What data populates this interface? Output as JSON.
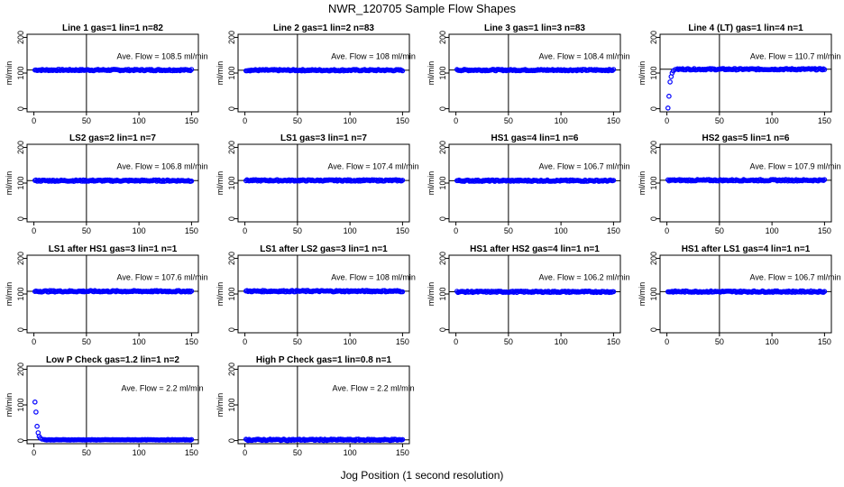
{
  "figure": {
    "title": "NWR_120705  Sample Flow Shapes",
    "xlabel": "Jog Position (1 second resolution)"
  },
  "chart_data": [
    {
      "type": "scatter",
      "title": "Line 1 gas=1 lin=1 n=82",
      "ylabel": "ml/min",
      "avg_label": "Ave. Flow =  108.5  ml/min",
      "avg_value": 108.5,
      "xlim": [
        0,
        150
      ],
      "ylim": [
        0,
        200
      ],
      "xticks": [
        0,
        50,
        100,
        150
      ],
      "yticks": [
        0,
        100,
        200
      ],
      "vline": 50,
      "hline": 108.5,
      "series": [
        {
          "color": "#0000ff",
          "x": [
            1,
            150
          ],
          "y": [
            108.5,
            108.5
          ],
          "shape": "flat"
        }
      ]
    },
    {
      "type": "scatter",
      "title": "Line 2 gas=1 lin=2 n=83",
      "ylabel": "ml/min",
      "avg_label": "Ave. Flow =  108  ml/min",
      "avg_value": 108,
      "xlim": [
        0,
        150
      ],
      "ylim": [
        0,
        200
      ],
      "xticks": [
        0,
        50,
        100,
        150
      ],
      "yticks": [
        0,
        100,
        200
      ],
      "vline": 50,
      "hline": 108,
      "series": [
        {
          "color": "#0000ff",
          "x": [
            1,
            150
          ],
          "y": [
            108,
            108
          ],
          "shape": "flat"
        }
      ]
    },
    {
      "type": "scatter",
      "title": "Line 3 gas=1 lin=3 n=83",
      "ylabel": "ml/min",
      "avg_label": "Ave. Flow =  108.4  ml/min",
      "avg_value": 108.4,
      "xlim": [
        0,
        150
      ],
      "ylim": [
        0,
        200
      ],
      "xticks": [
        0,
        50,
        100,
        150
      ],
      "yticks": [
        0,
        100,
        200
      ],
      "vline": 50,
      "hline": 108.4,
      "series": [
        {
          "color": "#0000ff",
          "x": [
            1,
            150
          ],
          "y": [
            108.4,
            108.4
          ],
          "shape": "flat"
        }
      ]
    },
    {
      "type": "scatter",
      "title": "Line 4 (LT) gas=1 lin=4 n=1",
      "ylabel": "ml/min",
      "avg_label": "Ave. Flow =  110.7  ml/min",
      "avg_value": 110.7,
      "xlim": [
        0,
        150
      ],
      "ylim": [
        0,
        200
      ],
      "xticks": [
        0,
        50,
        100,
        150
      ],
      "yticks": [
        0,
        100,
        200
      ],
      "vline": 50,
      "hline": 110.7,
      "series": [
        {
          "color": "#0000ff",
          "x": [
            1,
            2,
            3,
            4,
            5,
            6,
            8,
            10
          ],
          "y": [
            2,
            35,
            75,
            90,
            100,
            106,
            110,
            112
          ],
          "shape": "rise"
        }
      ]
    },
    {
      "type": "scatter",
      "title": "LS2 gas=2 lin=1 n=7",
      "ylabel": "ml/min",
      "avg_label": "Ave. Flow =  106.8  ml/min",
      "avg_value": 106.8,
      "xlim": [
        0,
        150
      ],
      "ylim": [
        0,
        200
      ],
      "xticks": [
        0,
        50,
        100,
        150
      ],
      "yticks": [
        0,
        100,
        200
      ],
      "vline": 50,
      "hline": 106.8,
      "series": [
        {
          "color": "#0000ff",
          "x": [
            1,
            150
          ],
          "y": [
            106.8,
            106.8
          ],
          "shape": "flat"
        }
      ]
    },
    {
      "type": "scatter",
      "title": "LS1 gas=3 lin=1 n=7",
      "ylabel": "ml/min",
      "avg_label": "Ave. Flow =  107.4  ml/min",
      "avg_value": 107.4,
      "xlim": [
        0,
        150
      ],
      "ylim": [
        0,
        200
      ],
      "xticks": [
        0,
        50,
        100,
        150
      ],
      "yticks": [
        0,
        100,
        200
      ],
      "vline": 50,
      "hline": 107.4,
      "series": [
        {
          "color": "#0000ff",
          "x": [
            1,
            150
          ],
          "y": [
            107.4,
            107.4
          ],
          "shape": "flat"
        }
      ]
    },
    {
      "type": "scatter",
      "title": "HS1 gas=4 lin=1 n=6",
      "ylabel": "ml/min",
      "avg_label": "Ave. Flow =  106.7  ml/min",
      "avg_value": 106.7,
      "xlim": [
        0,
        150
      ],
      "ylim": [
        0,
        200
      ],
      "xticks": [
        0,
        50,
        100,
        150
      ],
      "yticks": [
        0,
        100,
        200
      ],
      "vline": 50,
      "hline": 106.7,
      "series": [
        {
          "color": "#0000ff",
          "x": [
            1,
            150
          ],
          "y": [
            106.7,
            106.7
          ],
          "shape": "flat"
        }
      ]
    },
    {
      "type": "scatter",
      "title": "HS2 gas=5 lin=1 n=6",
      "ylabel": "ml/min",
      "avg_label": "Ave. Flow =  107.9  ml/min",
      "avg_value": 107.9,
      "xlim": [
        0,
        150
      ],
      "ylim": [
        0,
        200
      ],
      "xticks": [
        0,
        50,
        100,
        150
      ],
      "yticks": [
        0,
        100,
        200
      ],
      "vline": 50,
      "hline": 107.9,
      "series": [
        {
          "color": "#0000ff",
          "x": [
            1,
            150
          ],
          "y": [
            107.9,
            107.9
          ],
          "shape": "flat"
        }
      ]
    },
    {
      "type": "scatter",
      "title": "LS1 after HS1 gas=3 lin=1 n=1",
      "ylabel": "ml/min",
      "avg_label": "Ave. Flow =  107.6  ml/min",
      "avg_value": 107.6,
      "xlim": [
        0,
        150
      ],
      "ylim": [
        0,
        200
      ],
      "xticks": [
        0,
        50,
        100,
        150
      ],
      "yticks": [
        0,
        100,
        200
      ],
      "vline": 50,
      "hline": 107.6,
      "series": [
        {
          "color": "#0000ff",
          "x": [
            1,
            150
          ],
          "y": [
            107.6,
            107.6
          ],
          "shape": "flat"
        }
      ]
    },
    {
      "type": "scatter",
      "title": "LS1 after LS2 gas=3 lin=1 n=1",
      "ylabel": "ml/min",
      "avg_label": "Ave. Flow =  108  ml/min",
      "avg_value": 108,
      "xlim": [
        0,
        150
      ],
      "ylim": [
        0,
        200
      ],
      "xticks": [
        0,
        50,
        100,
        150
      ],
      "yticks": [
        0,
        100,
        200
      ],
      "vline": 50,
      "hline": 108,
      "series": [
        {
          "color": "#0000ff",
          "x": [
            1,
            150
          ],
          "y": [
            108,
            108
          ],
          "shape": "flat"
        }
      ]
    },
    {
      "type": "scatter",
      "title": "HS1 after HS2 gas=4 lin=1 n=1",
      "ylabel": "ml/min",
      "avg_label": "Ave. Flow =  106.2  ml/min",
      "avg_value": 106.2,
      "xlim": [
        0,
        150
      ],
      "ylim": [
        0,
        200
      ],
      "xticks": [
        0,
        50,
        100,
        150
      ],
      "yticks": [
        0,
        100,
        200
      ],
      "vline": 50,
      "hline": 106.2,
      "series": [
        {
          "color": "#0000ff",
          "x": [
            1,
            150
          ],
          "y": [
            106.2,
            106.2
          ],
          "shape": "flat"
        }
      ]
    },
    {
      "type": "scatter",
      "title": "HS1 after LS1 gas=4 lin=1 n=1",
      "ylabel": "ml/min",
      "avg_label": "Ave. Flow =  106.7  ml/min",
      "avg_value": 106.7,
      "xlim": [
        0,
        150
      ],
      "ylim": [
        0,
        200
      ],
      "xticks": [
        0,
        50,
        100,
        150
      ],
      "yticks": [
        0,
        100,
        200
      ],
      "vline": 50,
      "hline": 106.7,
      "series": [
        {
          "color": "#0000ff",
          "x": [
            1,
            150
          ],
          "y": [
            106.7,
            106.7
          ],
          "shape": "flat"
        }
      ]
    },
    {
      "type": "scatter",
      "title": "Low P Check gas=1.2 lin=1 n=2",
      "ylabel": "ml/min",
      "avg_label": "Ave. Flow =  2.2  ml/min",
      "avg_value": 2.2,
      "xlim": [
        0,
        150
      ],
      "ylim": [
        0,
        200
      ],
      "xticks": [
        0,
        50,
        100,
        150
      ],
      "yticks": [
        0,
        100,
        200
      ],
      "vline": 50,
      "hline": 2.2,
      "series": [
        {
          "color": "#0000ff",
          "x": [
            1,
            2,
            3,
            4,
            5,
            6,
            8,
            10
          ],
          "y": [
            108,
            80,
            40,
            22,
            12,
            7,
            4,
            3
          ],
          "shape": "decay"
        }
      ]
    },
    {
      "type": "scatter",
      "title": "High P Check gas=1 lin=0.8 n=1",
      "ylabel": "ml/min",
      "avg_label": "Ave. Flow =  2.2  ml/min",
      "avg_value": 2.2,
      "xlim": [
        0,
        150
      ],
      "ylim": [
        0,
        200
      ],
      "xticks": [
        0,
        50,
        100,
        150
      ],
      "yticks": [
        0,
        100,
        200
      ],
      "vline": 50,
      "hline": 2.2,
      "series": [
        {
          "color": "#0000ff",
          "x": [
            1,
            150
          ],
          "y": [
            2.2,
            2.2
          ],
          "shape": "flat"
        }
      ]
    }
  ]
}
